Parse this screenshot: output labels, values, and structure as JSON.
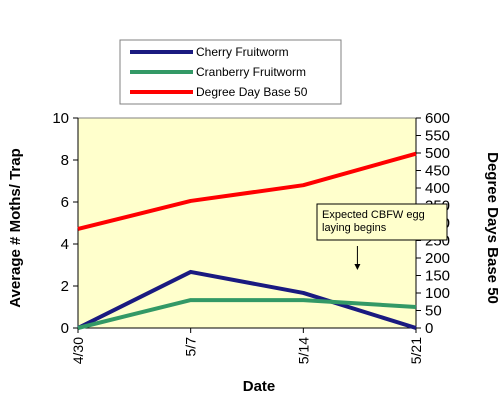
{
  "chart_data": {
    "type": "line",
    "categories": [
      "4/30",
      "5/7",
      "5/14",
      "5/21"
    ],
    "xlabel": "Date",
    "ylabel_left": "Average # Moths/ Trap",
    "ylabel_right": "Degree Days Base 50",
    "ylim_left": [
      0,
      10
    ],
    "yticks_left": [
      "0",
      "2",
      "4",
      "6",
      "8",
      "10"
    ],
    "ylim_right": [
      0,
      600
    ],
    "yticks_right": [
      "0",
      "50",
      "100",
      "150",
      "200",
      "250",
      "300",
      "350",
      "400",
      "450",
      "500",
      "550",
      "600"
    ],
    "grid": false,
    "plot_background": "#ffffcc",
    "legend_position": "top",
    "series": [
      {
        "name": "Cherry Fruitworm",
        "axis": "left",
        "color": "#1a1a80",
        "values": [
          0,
          2.67,
          1.67,
          0
        ]
      },
      {
        "name": "Cranberry Fruitworm",
        "axis": "left",
        "color": "#339966",
        "values": [
          0,
          1.33,
          1.33,
          1.0
        ]
      },
      {
        "name": "Degree Day Base 50",
        "axis": "right",
        "color": "#ff0000",
        "values": [
          283,
          363,
          408,
          498
        ]
      }
    ],
    "annotation": {
      "lines": [
        "Expected CBFW egg",
        "laying begins"
      ],
      "x_category": "5/21",
      "x_value": 2.48
    }
  }
}
